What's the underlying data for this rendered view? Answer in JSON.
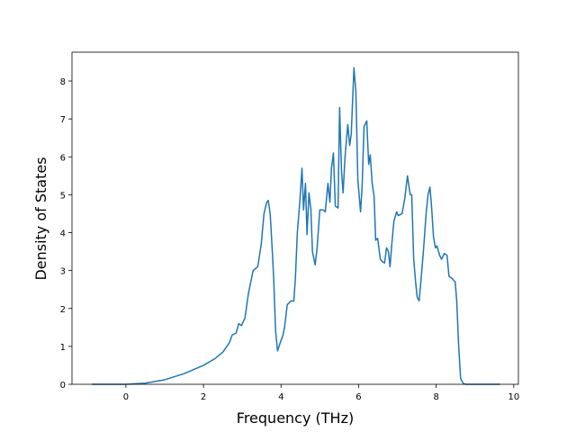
{
  "chart_data": {
    "type": "line",
    "xlabel": "Frequency (THz)",
    "ylabel": "Density of States",
    "xlim": [
      -1.39,
      10.12
    ],
    "ylim": [
      0,
      8.76
    ],
    "xticks": [
      0,
      2,
      4,
      6,
      8,
      10
    ],
    "yticks": [
      0,
      1,
      2,
      3,
      4,
      5,
      6,
      7,
      8
    ],
    "color": "#1f77b4",
    "x": [
      -0.88,
      -0.5,
      0,
      0.5,
      1,
      1.5,
      2,
      2.3,
      2.5,
      2.67,
      2.74,
      2.84,
      2.91,
      2.98,
      3.07,
      3.16,
      3.28,
      3.4,
      3.49,
      3.56,
      3.63,
      3.67,
      3.72,
      3.77,
      3.81,
      3.86,
      3.91,
      3.98,
      4.05,
      4.09,
      4.16,
      4.26,
      4.33,
      4.37,
      4.42,
      4.49,
      4.54,
      4.58,
      4.63,
      4.67,
      4.72,
      4.77,
      4.81,
      4.88,
      4.93,
      5.0,
      5.09,
      5.14,
      5.21,
      5.26,
      5.3,
      5.35,
      5.4,
      5.47,
      5.51,
      5.56,
      5.6,
      5.65,
      5.72,
      5.77,
      5.81,
      5.88,
      5.93,
      5.98,
      6.05,
      6.09,
      6.14,
      6.21,
      6.26,
      6.3,
      6.35,
      6.4,
      6.44,
      6.49,
      6.56,
      6.6,
      6.67,
      6.72,
      6.77,
      6.81,
      6.86,
      6.91,
      6.98,
      7.02,
      7.12,
      7.19,
      7.26,
      7.33,
      7.37,
      7.42,
      7.47,
      7.51,
      7.56,
      7.6,
      7.67,
      7.74,
      7.79,
      7.84,
      7.88,
      7.93,
      7.98,
      8.02,
      8.09,
      8.14,
      8.21,
      8.28,
      8.33,
      8.4,
      8.49,
      8.53,
      8.58,
      8.63,
      8.7,
      8.77,
      9.65
    ],
    "values": [
      0,
      0,
      0,
      0.03,
      0.12,
      0.28,
      0.5,
      0.68,
      0.85,
      1.1,
      1.3,
      1.35,
      1.6,
      1.55,
      1.75,
      2.4,
      3.0,
      3.1,
      3.7,
      4.5,
      4.8,
      4.85,
      4.5,
      3.6,
      2.8,
      1.4,
      0.88,
      1.1,
      1.3,
      1.5,
      2.1,
      2.2,
      2.2,
      2.8,
      4.0,
      4.9,
      5.7,
      4.6,
      5.3,
      3.95,
      5.05,
      4.6,
      3.5,
      3.15,
      3.6,
      4.6,
      4.6,
      4.55,
      5.3,
      4.8,
      5.7,
      6.1,
      4.7,
      4.65,
      7.3,
      5.6,
      5.05,
      6.0,
      6.85,
      6.3,
      6.6,
      8.35,
      7.7,
      5.4,
      4.55,
      5.2,
      6.8,
      6.95,
      5.8,
      6.05,
      5.3,
      4.95,
      3.8,
      3.85,
      3.3,
      3.25,
      3.2,
      3.6,
      3.5,
      3.1,
      3.75,
      4.3,
      4.55,
      4.45,
      4.5,
      4.9,
      5.5,
      5.0,
      5.0,
      3.3,
      2.7,
      2.3,
      2.2,
      2.65,
      3.5,
      4.5,
      5.0,
      5.2,
      4.7,
      3.9,
      3.6,
      3.65,
      3.4,
      3.3,
      3.45,
      3.4,
      2.85,
      2.8,
      2.7,
      2.2,
      1.0,
      0.15,
      0.02,
      0,
      0
    ]
  }
}
